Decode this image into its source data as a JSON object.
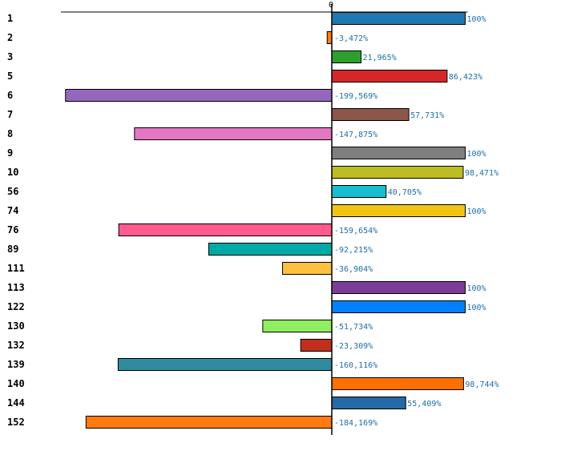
{
  "chart_data": {
    "type": "bar",
    "orientation": "horizontal",
    "title": "",
    "xlabel": "",
    "ylabel": "",
    "xlim": [
      -203,
      100
    ],
    "zero_tick_label": "0",
    "grid": false,
    "legend": "none",
    "value_label_color": "#1f6fa8",
    "axis_color": "#000000",
    "categories": [
      "1",
      "2",
      "3",
      "5",
      "6",
      "7",
      "8",
      "9",
      "10",
      "56",
      "74",
      "76",
      "89",
      "111",
      "113",
      "122",
      "130",
      "132",
      "139",
      "140",
      "144",
      "152"
    ],
    "values": [
      100,
      -3.472,
      21.965,
      86.423,
      -199.569,
      57.731,
      -147.875,
      100,
      98.471,
      40.705,
      100,
      -159.654,
      -92.215,
      -36.904,
      100,
      100,
      -51.734,
      -23.309,
      -160.116,
      98.744,
      55.409,
      -184.169
    ],
    "value_labels": [
      "100%",
      "-3,472%",
      "21,965%",
      "86,423%",
      "-199,569%",
      "57,731%",
      "-147,875%",
      "100%",
      "98,471%",
      "40,705%",
      "100%",
      "-159,654%",
      "-92,215%",
      "-36,904%",
      "100%",
      "100%",
      "-51,734%",
      "-23,309%",
      "-160,116%",
      "98,744%",
      "55,409%",
      "-184,169%"
    ],
    "colors": [
      "#1f77b4",
      "#ff7f0e",
      "#2ca02c",
      "#d62728",
      "#9467bd",
      "#8c564b",
      "#e377c2",
      "#7f7f7f",
      "#bcbd22",
      "#17becf",
      "#f1c40f",
      "#ff5b8f",
      "#00a9a5",
      "#ffc040",
      "#7d3c98",
      "#0080ff",
      "#90ee60",
      "#c0301c",
      "#2f8c9e",
      "#ff7000",
      "#2469a8",
      "#ff7a10"
    ]
  }
}
